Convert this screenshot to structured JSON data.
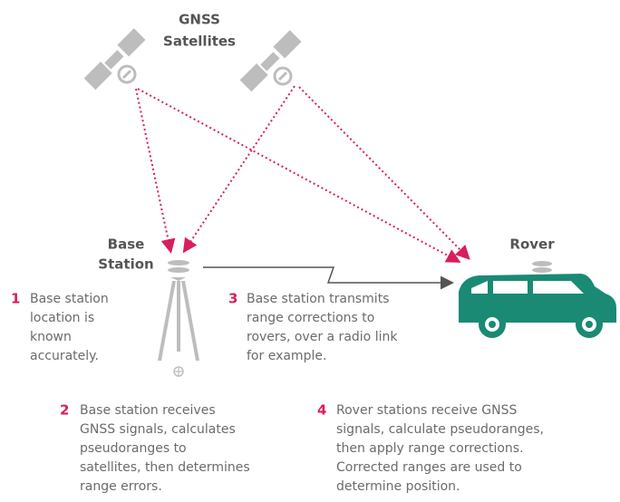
{
  "satellites_label": [
    "GNSS",
    "Satellites"
  ],
  "base_label": [
    "Base",
    "Station"
  ],
  "rover_label": "Rover",
  "steps": [
    {
      "number": "1",
      "lines": [
        "Base station",
        "location is",
        "known",
        "accurately."
      ]
    },
    {
      "number": "2",
      "lines": [
        "Base station receives",
        "GNSS signals, calculates",
        "pseudoranges to",
        "satellites, then determines",
        "range errors."
      ]
    },
    {
      "number": "3",
      "lines": [
        "Base station transmits",
        "range corrections to",
        "rovers, over a radio link",
        "for example."
      ]
    },
    {
      "number": "4",
      "lines": [
        "Rover stations receive GNSS",
        "signals, calculate pseudoranges,",
        "then apply range corrections.",
        "Corrected ranges are used to",
        "determine position."
      ]
    }
  ]
}
